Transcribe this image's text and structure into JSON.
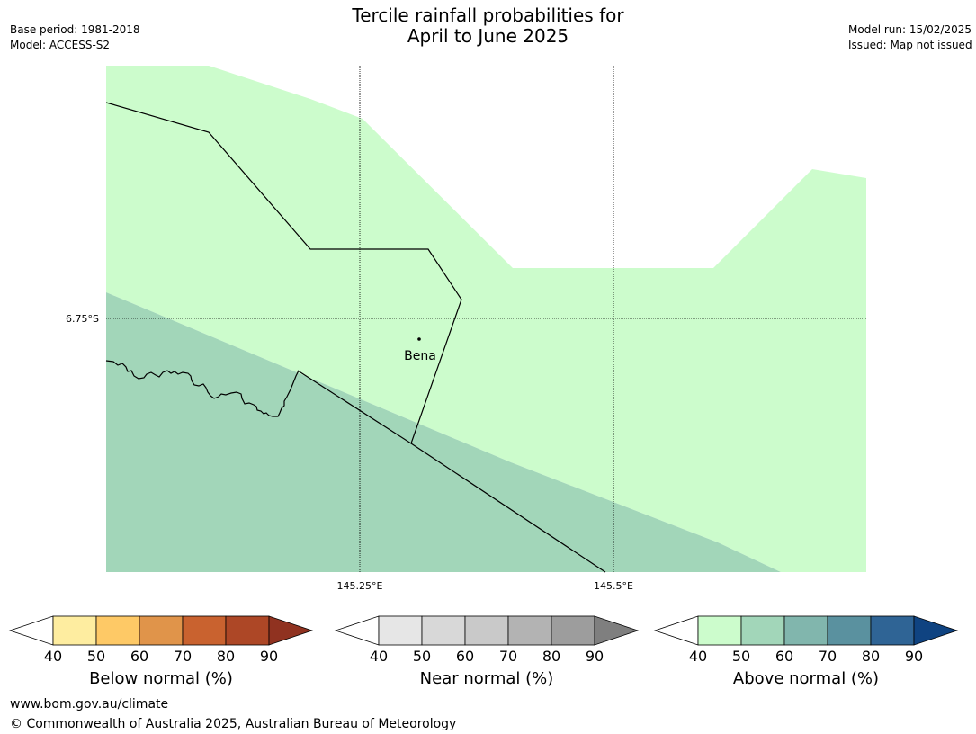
{
  "header": {
    "title_line1": "Tercile rainfall probabilities for",
    "title_line2": "April to June 2025",
    "base_period": "Base period: 1981-2018",
    "model": "Model: ACCESS-S2",
    "model_run": "Model run: 15/02/2025",
    "issued": "Issued: Map not issued"
  },
  "map": {
    "place_label": "Bena",
    "lat_label": "6.75°S",
    "lon_labels": [
      "145.25°E",
      "145.5°E"
    ]
  },
  "colorbars": [
    {
      "name": "below",
      "label": "Below normal (%)",
      "ticks": [
        "40",
        "50",
        "60",
        "70",
        "80",
        "90"
      ],
      "colors": [
        "#ffffff",
        "#feeda0",
        "#fec966",
        "#e0944a",
        "#c9622f",
        "#ad4726",
        "#903220"
      ]
    },
    {
      "name": "near",
      "label": "Near normal (%)",
      "ticks": [
        "40",
        "50",
        "60",
        "70",
        "80",
        "90"
      ],
      "colors": [
        "#ffffff",
        "#e6e6e6",
        "#d8d8d8",
        "#c9c9c9",
        "#b3b3b3",
        "#9d9d9d",
        "#7f7f7f"
      ]
    },
    {
      "name": "above",
      "label": "Above normal (%)",
      "ticks": [
        "40",
        "50",
        "60",
        "70",
        "80",
        "90"
      ],
      "colors": [
        "#ffffff",
        "#ccfccc",
        "#a2d6b9",
        "#81b6ad",
        "#5a919f",
        "#2f6495",
        "#0f4381"
      ]
    }
  ],
  "footer": {
    "website": "www.bom.gov.au/climate",
    "copyright": "© Commonwealth of Australia 2025, Australian Bureau of Meteorology"
  }
}
